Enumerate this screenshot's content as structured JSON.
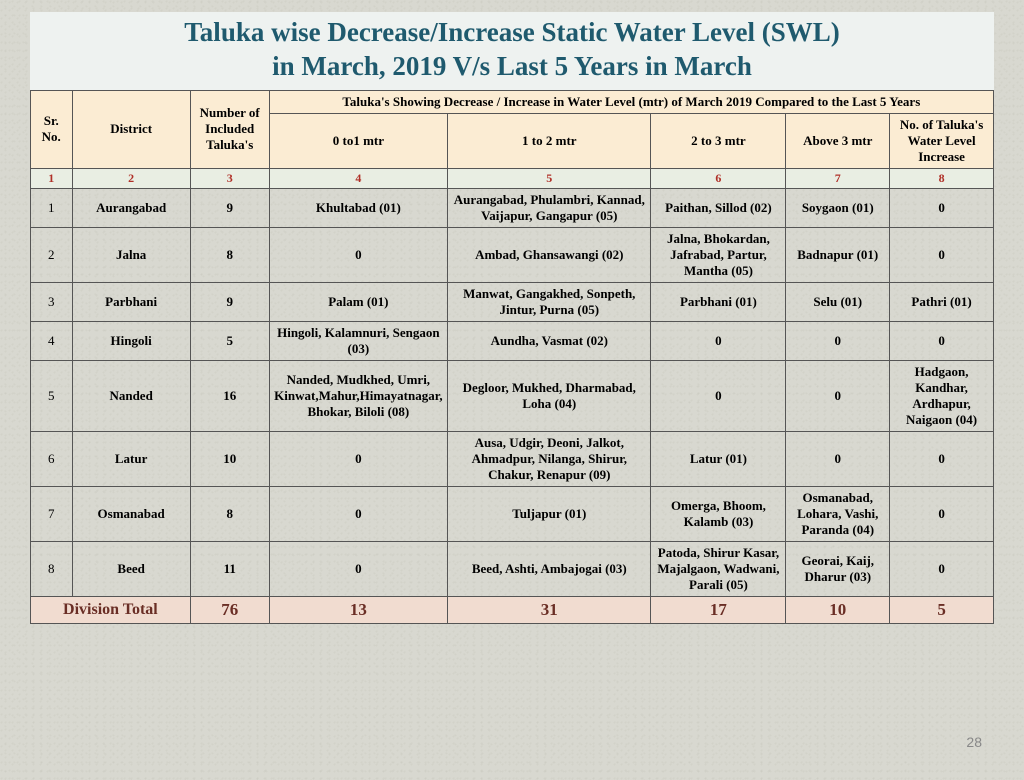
{
  "title_line1": "Taluka wise Decrease/Increase Static Water Level (SWL)",
  "title_line2": "in March, 2019 V/s Last 5 Years in March",
  "page_number": "28",
  "header": {
    "sr": "Sr. No.",
    "district": "District",
    "num_talukas": "Number of Included Taluka's",
    "spanning": "Taluka's Showing Decrease / Increase in Water Level (mtr) of March 2019 Compared to the Last 5 Years",
    "c4": "0 to1 mtr",
    "c5": "1 to 2 mtr",
    "c6": "2 to 3 mtr",
    "c7": "Above 3 mtr",
    "c8": "No. of Taluka's Water Level Increase"
  },
  "colnums": [
    "1",
    "2",
    "3",
    "4",
    "5",
    "6",
    "7",
    "8"
  ],
  "rows": [
    {
      "sr": "1",
      "district": "Aurangabad",
      "num": "9",
      "c4": "Khultabad (01)",
      "c5": "Aurangabad, Phulambri, Kannad, Vaijapur, Gangapur (05)",
      "c6": "Paithan, Sillod (02)",
      "c7": "Soygaon (01)",
      "c8": "0"
    },
    {
      "sr": "2",
      "district": "Jalna",
      "num": "8",
      "c4": "0",
      "c5": "Ambad, Ghansawangi (02)",
      "c6": "Jalna, Bhokardan, Jafrabad, Partur, Mantha (05)",
      "c7": "Badnapur (01)",
      "c8": "0"
    },
    {
      "sr": "3",
      "district": "Parbhani",
      "num": "9",
      "c4": "Palam (01)",
      "c5": "Manwat,  Gangakhed, Sonpeth, Jintur, Purna (05)",
      "c6": "Parbhani (01)",
      "c7": "Selu (01)",
      "c8": "Pathri (01)"
    },
    {
      "sr": "4",
      "district": "Hingoli",
      "num": "5",
      "c4": "Hingoli, Kalamnuri, Sengaon (03)",
      "c5": "Aundha, Vasmat (02)",
      "c6": "0",
      "c7": "0",
      "c8": "0"
    },
    {
      "sr": "5",
      "district": "Nanded",
      "num": "16",
      "c4": "Nanded, Mudkhed, Umri, Kinwat,Mahur,Himayatnagar,  Bhokar, Biloli (08)",
      "c5": "Degloor, Mukhed, Dharmabad, Loha (04)",
      "c6": "0",
      "c7": "0",
      "c8": "Hadgaon, Kandhar, Ardhapur, Naigaon (04)"
    },
    {
      "sr": "6",
      "district": "Latur",
      "num": "10",
      "c4": "0",
      "c5": "Ausa,  Udgir, Deoni, Jalkot, Ahmadpur, Nilanga, Shirur, Chakur, Renapur (09)",
      "c6": "Latur (01)",
      "c7": "0",
      "c8": "0"
    },
    {
      "sr": "7",
      "district": "Osmanabad",
      "num": "8",
      "c4": "0",
      "c5": "Tuljapur (01)",
      "c6": "Omerga, Bhoom, Kalamb (03)",
      "c7": "Osmanabad, Lohara, Vashi, Paranda (04)",
      "c8": "0"
    },
    {
      "sr": "8",
      "district": "Beed",
      "num": "11",
      "c4": "0",
      "c5": "Beed, Ashti, Ambajogai (03)",
      "c6": "Patoda, Shirur Kasar, Majalgaon, Wadwani, Parali (05)",
      "c7": "Georai, Kaij, Dharur (03)",
      "c8": "0"
    }
  ],
  "total": {
    "label": "Division Total",
    "num": "76",
    "c4": "13",
    "c5": "31",
    "c6": "17",
    "c7": "10",
    "c8": "5"
  }
}
